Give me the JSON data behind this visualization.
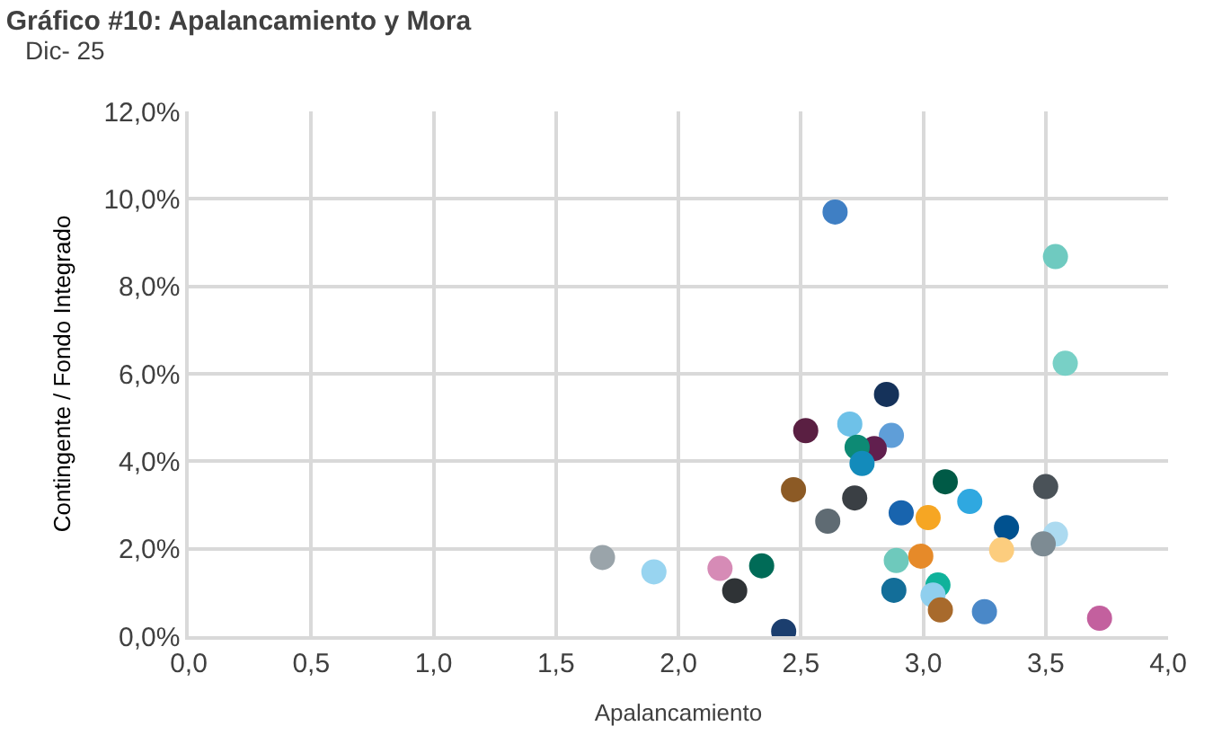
{
  "chart_data": {
    "type": "scatter",
    "title": "Gráfico #10: Apalancamiento y Mora",
    "subtitle": "Dic- 25",
    "xlabel": "Apalancamiento",
    "ylabel": "Contingente / Fondo Integrado",
    "x": [
      2.64,
      3.54,
      3.58,
      2.85,
      2.52,
      2.7,
      2.87,
      2.8,
      2.73,
      2.75,
      2.47,
      2.72,
      2.61,
      3.09,
      3.19,
      3.5,
      2.91,
      3.02,
      3.34,
      3.54,
      3.49,
      3.32,
      2.89,
      2.99,
      2.17,
      2.34,
      2.23,
      2.43,
      2.88,
      3.06,
      3.04,
      3.07,
      3.25,
      3.72,
      1.69,
      1.9
    ],
    "values": [
      9.7,
      8.68,
      6.24,
      5.53,
      4.7,
      4.85,
      4.59,
      4.29,
      4.32,
      3.95,
      3.35,
      3.16,
      2.63,
      3.53,
      3.08,
      3.42,
      2.82,
      2.71,
      2.48,
      2.33,
      2.11,
      1.97,
      1.73,
      1.83,
      1.55,
      1.61,
      1.04,
      0.11,
      1.05,
      1.17,
      0.94,
      0.6,
      0.56,
      0.41,
      1.8,
      1.47
    ],
    "colors": [
      "#3f7fc4",
      "#6fcac0",
      "#78d0c6",
      "#15325a",
      "#5a1f42",
      "#6ec1e8",
      "#5f9ed8",
      "#611f4e",
      "#0d8a74",
      "#138bbb",
      "#8c5a25",
      "#3a3f44",
      "#5f6b73",
      "#005a46",
      "#2fa8e0",
      "#4a5258",
      "#1864ae",
      "#f6a623",
      "#00518f",
      "#acdaf0",
      "#7d8b93",
      "#fccd7e",
      "#6ec9bc",
      "#e68a29",
      "#d68bb6",
      "#006b57",
      "#2f3336",
      "#1b3e6e",
      "#136e99",
      "#10b29b",
      "#8fcfee",
      "#a86a2c",
      "#4a88c8",
      "#c3609e",
      "#9aa4aa",
      "#98d4f0"
    ],
    "marker": "circle",
    "xlim": [
      0,
      4
    ],
    "xticks": [
      {
        "value": 0,
        "label": "0,0"
      },
      {
        "value": 0.5,
        "label": "0,5"
      },
      {
        "value": 1,
        "label": "1,0"
      },
      {
        "value": 1.5,
        "label": "1,5"
      },
      {
        "value": 2,
        "label": "2,0"
      },
      {
        "value": 2.5,
        "label": "2,5"
      },
      {
        "value": 3,
        "label": "3,0"
      },
      {
        "value": 3.5,
        "label": "3,5"
      },
      {
        "value": 4,
        "label": "4,0"
      }
    ],
    "ylim": [
      0,
      12
    ],
    "yticks": [
      {
        "value": 0,
        "label": "0,0%"
      },
      {
        "value": 2,
        "label": "2,0%"
      },
      {
        "value": 4,
        "label": "4,0%"
      },
      {
        "value": 6,
        "label": "6,0%"
      },
      {
        "value": 8,
        "label": "8,0%"
      },
      {
        "value": 10,
        "label": "10,0%"
      },
      {
        "value": 12,
        "label": "12,0%"
      }
    ],
    "grid": true
  }
}
